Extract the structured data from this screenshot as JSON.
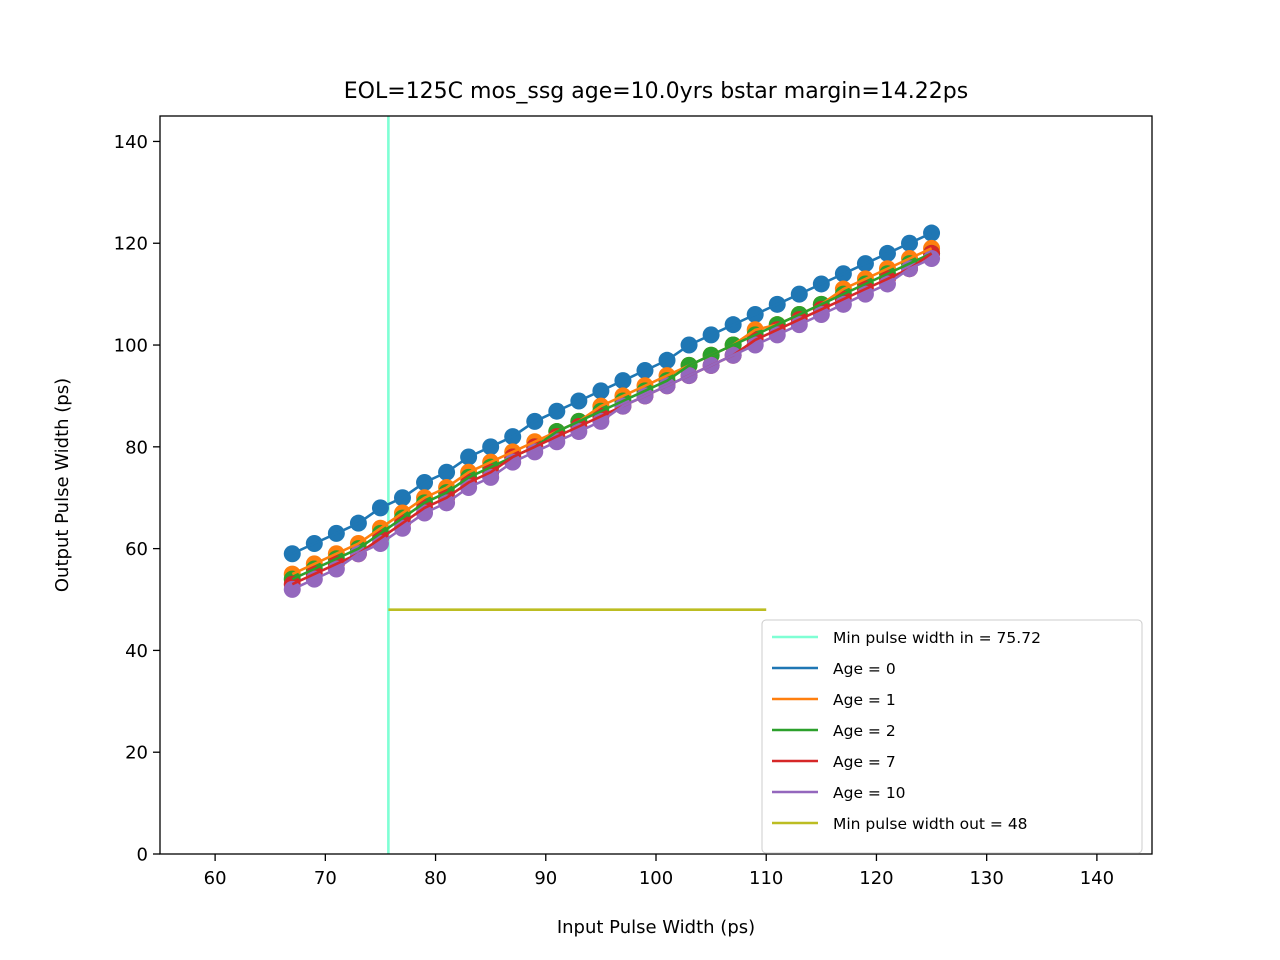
{
  "chart_data": {
    "type": "line",
    "title": "EOL=125C  mos_ssg age=10.0yrs bstar margin=14.22ps",
    "xlabel": "Input Pulse Width (ps)",
    "ylabel": "Output Pulse Width (ps)",
    "xlim": [
      55,
      145
    ],
    "ylim": [
      0,
      145
    ],
    "xticks": [
      60,
      70,
      80,
      90,
      100,
      110,
      120,
      130,
      140
    ],
    "yticks": [
      0,
      20,
      40,
      60,
      80,
      100,
      120,
      140
    ],
    "grid": false,
    "legend_position": "lower-right",
    "x": [
      67,
      69,
      71,
      73,
      75,
      77,
      79,
      81,
      83,
      85,
      87,
      89,
      91,
      93,
      95,
      97,
      99,
      101,
      103,
      105,
      107,
      109,
      111,
      113,
      115,
      117,
      119,
      121,
      123,
      125
    ],
    "series": [
      {
        "name": "Age = 0",
        "color": "#1f77b4",
        "values": [
          59,
          61,
          63,
          65,
          68,
          70,
          73,
          75,
          78,
          80,
          82,
          85,
          87,
          89,
          91,
          93,
          95,
          97,
          100,
          102,
          104,
          106,
          108,
          110,
          112,
          114,
          116,
          118,
          120,
          122
        ]
      },
      {
        "name": "Age = 1",
        "color": "#ff7f0e",
        "values": [
          55,
          57,
          59,
          61,
          64,
          67,
          70,
          72,
          75,
          77,
          79,
          81,
          83,
          85,
          88,
          90,
          92,
          94,
          96,
          98,
          100,
          103,
          104,
          106,
          108,
          111,
          113,
          115,
          117,
          119
        ]
      },
      {
        "name": "Age = 2",
        "color": "#2ca02c",
        "values": [
          54,
          56,
          58,
          60,
          63,
          66,
          69,
          71,
          74,
          76,
          78,
          80,
          83,
          85,
          87,
          89,
          91,
          93,
          96,
          98,
          100,
          102,
          104,
          106,
          108,
          110,
          112,
          114,
          116,
          118
        ]
      },
      {
        "name": "Age = 7",
        "color": "#d62728",
        "values": [
          53,
          55,
          57,
          59,
          62,
          65,
          68,
          70,
          73,
          75,
          78,
          80,
          82,
          84,
          86,
          88,
          90,
          92,
          94,
          96,
          98,
          101,
          103,
          105,
          107,
          109,
          111,
          113,
          115,
          118
        ]
      },
      {
        "name": "Age = 10",
        "color": "#9467bd",
        "values": [
          52,
          54,
          56,
          59,
          61,
          64,
          67,
          69,
          72,
          74,
          77,
          79,
          81,
          83,
          85,
          88,
          90,
          92,
          94,
          96,
          98,
          100,
          102,
          104,
          106,
          108,
          110,
          112,
          115,
          117
        ]
      }
    ],
    "reference_lines": {
      "vertical": {
        "name": "Min pulse width in = 75.72",
        "color": "#7fffd4",
        "x": 75.72
      },
      "horizontal": {
        "name": "Min pulse width out = 48",
        "color": "#bcbd22",
        "y": 48,
        "x_range": [
          75.72,
          110
        ]
      }
    }
  }
}
